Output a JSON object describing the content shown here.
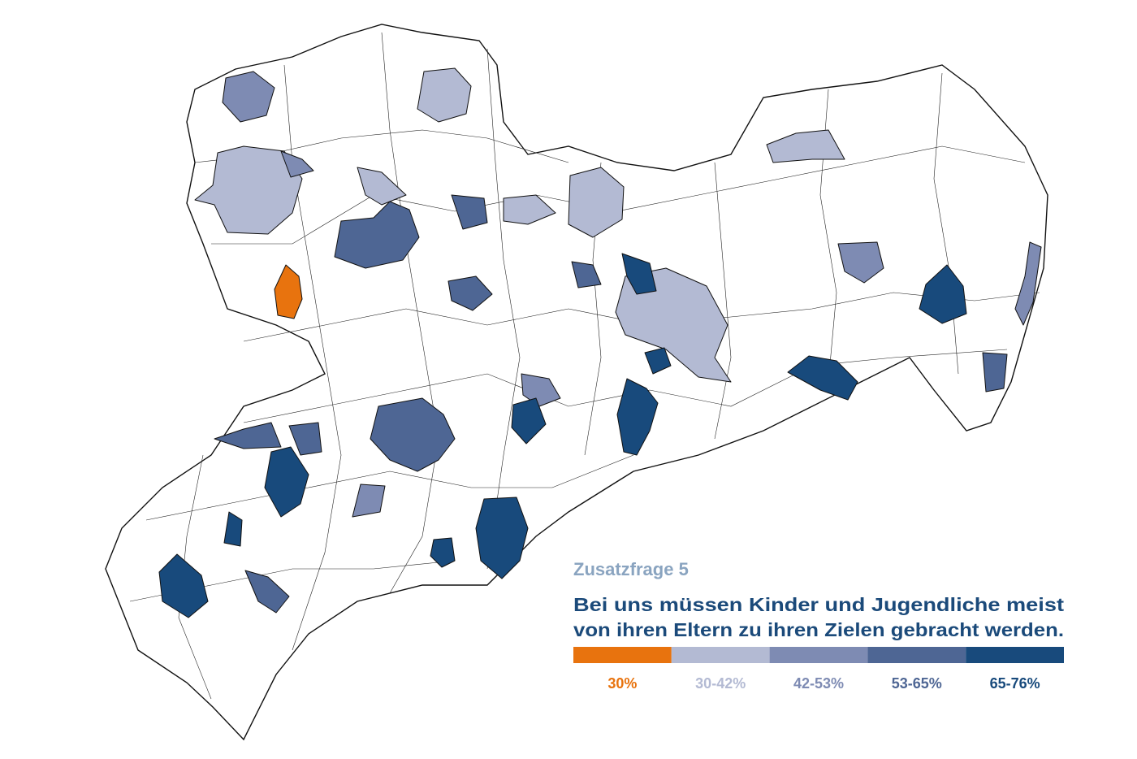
{
  "header": {
    "kicker": "Zusatzfrage 5",
    "question": [
      "Bei uns müssen Kinder und Jugendliche meist",
      "von ihren Eltern zu ihren Zielen gebracht werden."
    ]
  },
  "legend": {
    "items": [
      {
        "label": "30%",
        "color": "#e8730e"
      },
      {
        "label": "30-42%",
        "color": "#b3bad3"
      },
      {
        "label": "42-53%",
        "color": "#7e8bb3"
      },
      {
        "label": "53-65%",
        "color": "#4e6694"
      },
      {
        "label": "65-76%",
        "color": "#184a7c"
      }
    ]
  }
}
